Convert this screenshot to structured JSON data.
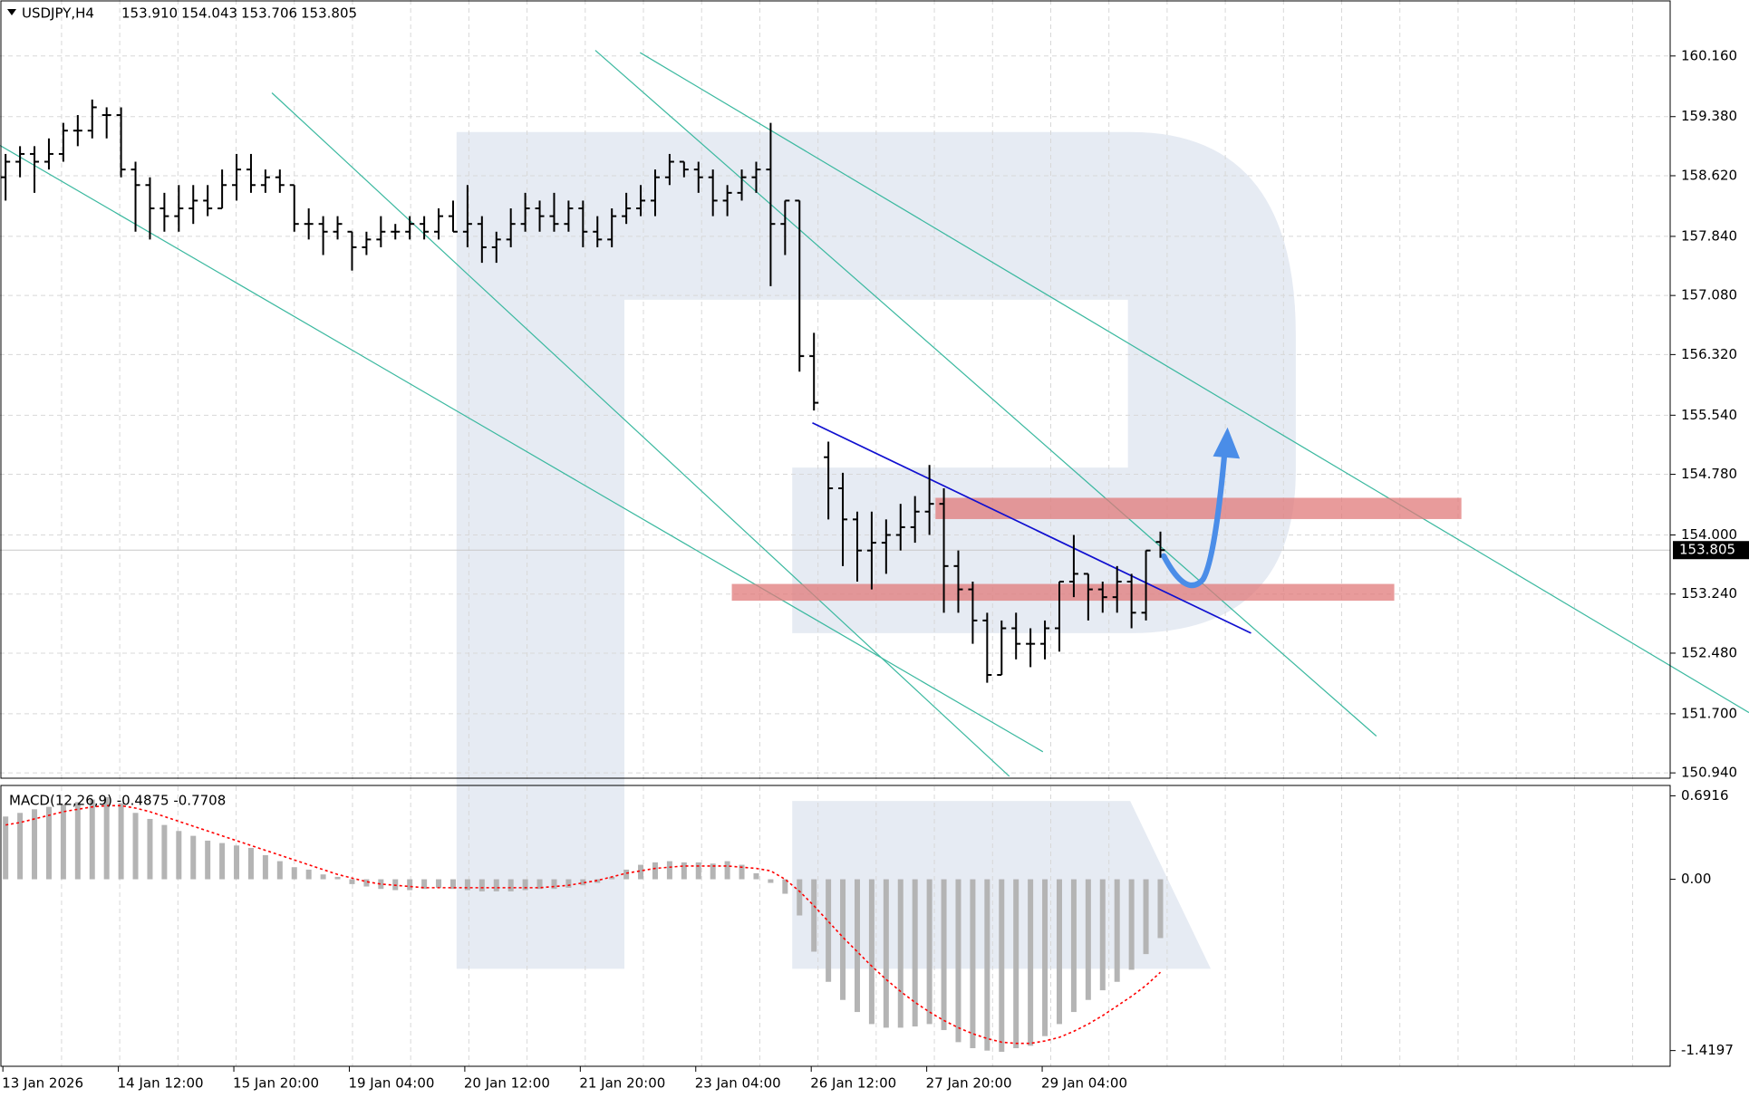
{
  "chart_data": {
    "type": "ohlc",
    "title": "USDJPY,H4",
    "title_values": [
      "153.910",
      "154.043",
      "153.706",
      "153.805"
    ],
    "x_labels": [
      "13 Jan 2026",
      "14 Jan 12:00",
      "15 Jan 20:00",
      "19 Jan 04:00",
      "20 Jan 12:00",
      "21 Jan 20:00",
      "23 Jan 04:00",
      "26 Jan 12:00",
      "27 Jan 20:00",
      "29 Jan 04:00"
    ],
    "ylim": [
      150.86,
      160.88
    ],
    "yticks": [
      {
        "value": 160.16,
        "label": "160.160"
      },
      {
        "value": 159.38,
        "label": "159.380"
      },
      {
        "value": 158.62,
        "label": "158.620"
      },
      {
        "value": 157.84,
        "label": "157.840"
      },
      {
        "value": 157.08,
        "label": "157.080"
      },
      {
        "value": 156.32,
        "label": "156.320"
      },
      {
        "value": 155.54,
        "label": "155.540"
      },
      {
        "value": 154.78,
        "label": "154.780"
      },
      {
        "value": 154.0,
        "label": "154.000"
      },
      {
        "value": 153.24,
        "label": "153.240"
      },
      {
        "value": 152.48,
        "label": "152.480"
      },
      {
        "value": 151.7,
        "label": "151.700"
      },
      {
        "value": 150.94,
        "label": "150.940"
      }
    ],
    "current_price": {
      "value": 153.805,
      "label": "153.805"
    },
    "grid": true,
    "color": "#000000",
    "ohlc": [
      [
        158.6,
        158.9,
        158.3,
        158.8
      ],
      [
        158.8,
        159.0,
        158.6,
        158.9
      ],
      [
        158.9,
        159.0,
        158.4,
        158.8
      ],
      [
        158.8,
        159.1,
        158.7,
        158.9
      ],
      [
        158.9,
        159.3,
        158.8,
        159.2
      ],
      [
        159.2,
        159.4,
        159.0,
        159.2
      ],
      [
        159.2,
        159.6,
        159.1,
        159.5
      ],
      [
        159.4,
        159.5,
        159.1,
        159.4
      ],
      [
        159.4,
        159.5,
        158.6,
        158.7
      ],
      [
        158.7,
        158.8,
        157.9,
        158.5
      ],
      [
        158.5,
        158.6,
        157.8,
        158.2
      ],
      [
        158.2,
        158.4,
        157.9,
        158.1
      ],
      [
        158.1,
        158.5,
        157.9,
        158.2
      ],
      [
        158.2,
        158.5,
        158.0,
        158.3
      ],
      [
        158.3,
        158.5,
        158.1,
        158.2
      ],
      [
        158.2,
        158.7,
        158.2,
        158.5
      ],
      [
        158.5,
        158.9,
        158.3,
        158.7
      ],
      [
        158.7,
        158.9,
        158.4,
        158.5
      ],
      [
        158.5,
        158.7,
        158.4,
        158.6
      ],
      [
        158.6,
        158.7,
        158.4,
        158.5
      ],
      [
        158.5,
        158.5,
        157.9,
        158.0
      ],
      [
        158.0,
        158.2,
        157.8,
        158.0
      ],
      [
        158.0,
        158.1,
        157.6,
        157.9
      ],
      [
        157.9,
        158.1,
        157.8,
        158.0
      ],
      [
        157.9,
        157.9,
        157.4,
        157.7
      ],
      [
        157.7,
        157.9,
        157.6,
        157.8
      ],
      [
        157.8,
        158.1,
        157.7,
        157.9
      ],
      [
        157.9,
        158.0,
        157.8,
        157.9
      ],
      [
        157.9,
        158.1,
        157.8,
        158.0
      ],
      [
        158.0,
        158.1,
        157.8,
        157.9
      ],
      [
        157.9,
        158.2,
        157.8,
        158.1
      ],
      [
        158.1,
        158.3,
        157.9,
        157.9
      ],
      [
        157.9,
        158.5,
        157.7,
        158.0
      ],
      [
        158.0,
        158.1,
        157.5,
        157.7
      ],
      [
        157.7,
        157.9,
        157.5,
        157.8
      ],
      [
        157.8,
        158.2,
        157.7,
        158.0
      ],
      [
        158.0,
        158.4,
        157.9,
        158.2
      ],
      [
        158.2,
        158.3,
        157.9,
        158.1
      ],
      [
        158.1,
        158.4,
        157.9,
        158.0
      ],
      [
        158.0,
        158.3,
        157.9,
        158.2
      ],
      [
        158.2,
        158.3,
        157.7,
        157.9
      ],
      [
        157.9,
        158.1,
        157.7,
        157.8
      ],
      [
        157.8,
        158.2,
        157.7,
        158.1
      ],
      [
        158.1,
        158.4,
        158.0,
        158.2
      ],
      [
        158.2,
        158.5,
        158.1,
        158.3
      ],
      [
        158.3,
        158.7,
        158.1,
        158.6
      ],
      [
        158.6,
        158.9,
        158.5,
        158.8
      ],
      [
        158.8,
        158.8,
        158.6,
        158.7
      ],
      [
        158.7,
        158.8,
        158.4,
        158.6
      ],
      [
        158.6,
        158.7,
        158.1,
        158.3
      ],
      [
        158.3,
        158.5,
        158.1,
        158.4
      ],
      [
        158.4,
        158.7,
        158.3,
        158.6
      ],
      [
        158.6,
        158.8,
        158.4,
        158.7
      ],
      [
        158.7,
        159.3,
        157.2,
        158.0
      ],
      [
        158.0,
        158.3,
        157.6,
        158.3
      ],
      [
        158.3,
        158.3,
        156.1,
        156.3
      ],
      [
        156.3,
        156.6,
        155.6,
        155.7
      ],
      [
        155.0,
        155.2,
        154.2,
        154.6
      ],
      [
        154.6,
        154.8,
        153.6,
        154.2
      ],
      [
        154.2,
        154.3,
        153.4,
        153.8
      ],
      [
        153.8,
        154.3,
        153.3,
        153.9
      ],
      [
        153.9,
        154.2,
        153.5,
        154.0
      ],
      [
        154.0,
        154.4,
        153.8,
        154.1
      ],
      [
        154.1,
        154.5,
        153.9,
        154.3
      ],
      [
        154.3,
        154.9,
        154.0,
        154.4
      ],
      [
        154.4,
        154.6,
        153.0,
        153.6
      ],
      [
        153.6,
        153.8,
        153.0,
        153.3
      ],
      [
        153.3,
        153.4,
        152.6,
        152.9
      ],
      [
        152.9,
        153.0,
        152.1,
        152.2
      ],
      [
        152.2,
        152.9,
        152.2,
        152.8
      ],
      [
        152.8,
        153.0,
        152.4,
        152.6
      ],
      [
        152.6,
        152.8,
        152.3,
        152.6
      ],
      [
        152.6,
        152.9,
        152.4,
        152.8
      ],
      [
        152.8,
        153.4,
        152.5,
        153.4
      ],
      [
        153.4,
        154.0,
        153.2,
        153.5
      ],
      [
        153.5,
        153.5,
        152.9,
        153.3
      ],
      [
        153.3,
        153.4,
        153.0,
        153.2
      ],
      [
        153.2,
        153.6,
        153.0,
        153.4
      ],
      [
        153.4,
        153.5,
        152.8,
        153.0
      ],
      [
        153.0,
        153.8,
        152.9,
        153.8
      ],
      [
        153.91,
        154.043,
        153.706,
        153.805
      ]
    ],
    "macd": {
      "title": "MACD(12,26,9) -0.4875 -0.7708",
      "ylim": [
        -1.55,
        0.77
      ],
      "yticks": [
        0.6916,
        {
          "value": 0,
          "label": "0.00"
        },
        -1.4197
      ],
      "histogram": {
        "color": "#b4b4b4",
        "values": [
          0.52,
          0.55,
          0.58,
          0.6,
          0.62,
          0.64,
          0.66,
          0.68,
          0.63,
          0.55,
          0.5,
          0.45,
          0.4,
          0.36,
          0.32,
          0.3,
          0.28,
          0.26,
          0.2,
          0.15,
          0.1,
          0.08,
          0.04,
          0.02,
          -0.04,
          -0.06,
          -0.08,
          -0.09,
          -0.09,
          -0.08,
          -0.07,
          -0.08,
          -0.09,
          -0.1,
          -0.1,
          -0.1,
          -0.09,
          -0.08,
          -0.08,
          -0.07,
          -0.05,
          -0.03,
          0.02,
          0.08,
          0.12,
          0.14,
          0.15,
          0.14,
          0.14,
          0.13,
          0.15,
          0.12,
          0.05,
          -0.03,
          -0.12,
          -0.3,
          -0.6,
          -0.85,
          -1.0,
          -1.1,
          -1.2,
          -1.23,
          -1.23,
          -1.22,
          -1.2,
          -1.25,
          -1.35,
          -1.4,
          -1.42,
          -1.43,
          -1.4,
          -1.38,
          -1.3,
          -1.2,
          -1.1,
          -1.0,
          -0.92,
          -0.85,
          -0.75,
          -0.62,
          -0.4875
        ]
      },
      "signal": {
        "color": "#ff0000",
        "values": [
          0.45,
          0.47,
          0.5,
          0.53,
          0.56,
          0.58,
          0.6,
          0.61,
          0.61,
          0.59,
          0.56,
          0.52,
          0.48,
          0.44,
          0.4,
          0.36,
          0.32,
          0.28,
          0.24,
          0.2,
          0.16,
          0.12,
          0.08,
          0.04,
          0.01,
          -0.02,
          -0.04,
          -0.05,
          -0.06,
          -0.07,
          -0.07,
          -0.07,
          -0.07,
          -0.07,
          -0.07,
          -0.07,
          -0.07,
          -0.07,
          -0.06,
          -0.05,
          -0.03,
          -0.01,
          0.02,
          0.05,
          0.07,
          0.09,
          0.1,
          0.11,
          0.11,
          0.11,
          0.11,
          0.1,
          0.09,
          0.07,
          0.0,
          -0.1,
          -0.22,
          -0.35,
          -0.48,
          -0.6,
          -0.72,
          -0.83,
          -0.93,
          -1.02,
          -1.1,
          -1.17,
          -1.23,
          -1.28,
          -1.32,
          -1.35,
          -1.36,
          -1.36,
          -1.34,
          -1.31,
          -1.26,
          -1.2,
          -1.13,
          -1.05,
          -0.97,
          -0.88,
          -0.7708
        ]
      }
    }
  }
}
